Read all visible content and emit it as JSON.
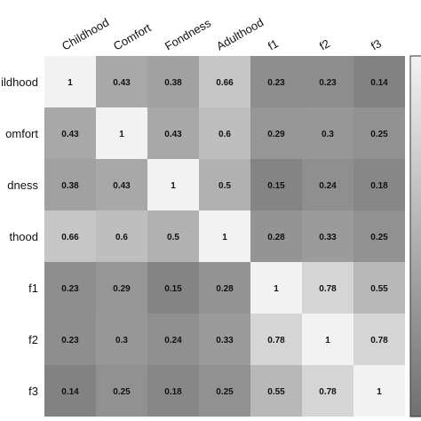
{
  "chart_data": {
    "type": "heatmap",
    "x_labels": [
      "Childhood",
      "Comfort",
      "Fondness",
      "Adulthood",
      "f1",
      "f2",
      "f3"
    ],
    "y_labels": [
      "ildhood",
      "omfort",
      "dness",
      "thood",
      "f1",
      "f2",
      "f3"
    ],
    "values": [
      [
        1,
        0.43,
        0.38,
        0.66,
        0.23,
        0.23,
        0.14
      ],
      [
        0.43,
        1,
        0.43,
        0.6,
        0.29,
        0.3,
        0.25
      ],
      [
        0.38,
        0.43,
        1,
        0.5,
        0.15,
        0.24,
        0.18
      ],
      [
        0.66,
        0.6,
        0.5,
        1,
        0.28,
        0.33,
        0.25
      ],
      [
        0.23,
        0.29,
        0.15,
        0.28,
        1,
        0.78,
        0.55
      ],
      [
        0.23,
        0.3,
        0.24,
        0.33,
        0.78,
        1,
        0.78
      ],
      [
        0.14,
        0.25,
        0.18,
        0.25,
        0.55,
        0.78,
        1
      ]
    ],
    "value_range": [
      0,
      1
    ],
    "colorscale": "grayscale",
    "annotations": "values printed in cells",
    "colorbar": "right (partially cropped)",
    "grid": false
  }
}
